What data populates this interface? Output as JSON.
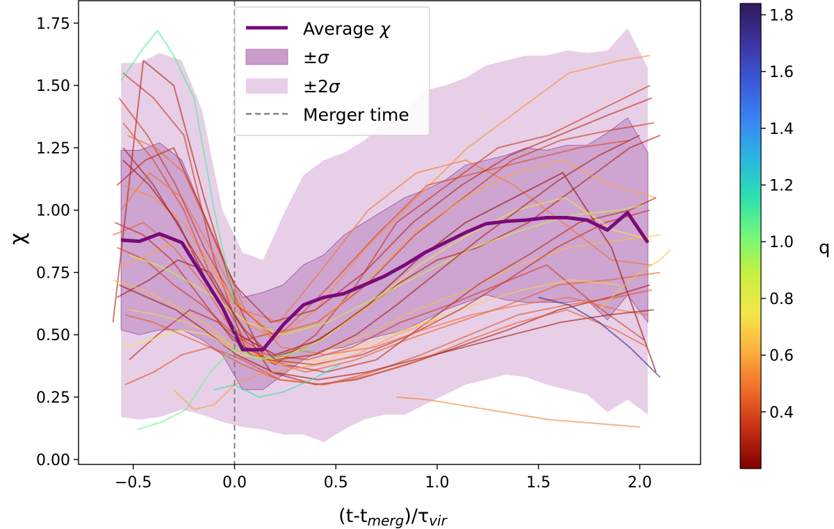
{
  "chart_data": {
    "type": "line",
    "xlabel": "(t-t_merg)/τ_vir",
    "ylabel": "χ",
    "xlim": [
      -0.77,
      2.3
    ],
    "ylim": [
      -0.02,
      1.84
    ],
    "x_ticks": [
      -0.5,
      0.0,
      0.5,
      1.0,
      1.5,
      2.0
    ],
    "y_ticks": [
      0.0,
      0.25,
      0.5,
      0.75,
      1.0,
      1.25,
      1.5,
      1.75
    ],
    "x_tick_labels": [
      "−0.5",
      "0.0",
      "0.5",
      "1.0",
      "1.5",
      "2.0"
    ],
    "y_tick_labels": [
      "0.00",
      "0.25",
      "0.50",
      "0.75",
      "1.00",
      "1.25",
      "1.50",
      "1.75"
    ],
    "grid": false,
    "legend_position": "top-center",
    "legend": [
      {
        "label": "Average χ",
        "kind": "line",
        "color": "#7a0a7a"
      },
      {
        "label": "±σ",
        "kind": "patch",
        "color": "#c99ccc"
      },
      {
        "label": "±2σ",
        "kind": "patch",
        "color": "#e8cfe8"
      },
      {
        "label": "Merger time",
        "kind": "dashed",
        "color": "#808080"
      }
    ],
    "merger_time_x": 0.0,
    "average": {
      "name": "Average χ",
      "color": "#7a0a7a",
      "x": [
        -0.56,
        -0.47,
        -0.37,
        -0.26,
        -0.16,
        -0.06,
        0.04,
        0.14,
        0.24,
        0.34,
        0.44,
        0.54,
        0.64,
        0.74,
        0.84,
        0.94,
        1.04,
        1.14,
        1.24,
        1.34,
        1.44,
        1.54,
        1.64,
        1.74,
        1.84,
        1.94,
        2.04
      ],
      "y": [
        0.88,
        0.875,
        0.905,
        0.87,
        0.74,
        0.61,
        0.44,
        0.44,
        0.54,
        0.62,
        0.65,
        0.665,
        0.7,
        0.735,
        0.78,
        0.83,
        0.87,
        0.91,
        0.945,
        0.955,
        0.96,
        0.97,
        0.97,
        0.96,
        0.92,
        0.99,
        0.87
      ]
    },
    "band_x": [
      -0.56,
      -0.47,
      -0.37,
      -0.26,
      -0.16,
      -0.06,
      0.04,
      0.14,
      0.24,
      0.34,
      0.44,
      0.54,
      0.64,
      0.74,
      0.84,
      0.94,
      1.04,
      1.14,
      1.24,
      1.34,
      1.44,
      1.54,
      1.64,
      1.74,
      1.84,
      1.94,
      2.04
    ],
    "sigma_band": {
      "label": "±σ",
      "color": "#c99ccc",
      "upper": [
        1.24,
        1.24,
        1.27,
        1.2,
        1.0,
        0.8,
        0.65,
        0.67,
        0.7,
        0.78,
        0.82,
        0.9,
        0.95,
        1.0,
        1.05,
        1.08,
        1.12,
        1.18,
        1.2,
        1.22,
        1.25,
        1.24,
        1.26,
        1.26,
        1.31,
        1.37,
        1.23
      ],
      "lower": [
        0.52,
        0.5,
        0.52,
        0.52,
        0.48,
        0.42,
        0.28,
        0.28,
        0.34,
        0.4,
        0.44,
        0.45,
        0.48,
        0.5,
        0.52,
        0.56,
        0.6,
        0.63,
        0.66,
        0.64,
        0.63,
        0.63,
        0.63,
        0.64,
        0.56,
        0.66,
        0.55
      ]
    },
    "two_sigma_band": {
      "label": "±2σ",
      "color": "#e8cfe8",
      "upper": [
        1.59,
        1.59,
        1.63,
        1.6,
        1.4,
        1.0,
        0.83,
        0.8,
        0.98,
        1.14,
        1.2,
        1.23,
        1.28,
        1.35,
        1.4,
        1.48,
        1.5,
        1.53,
        1.58,
        1.6,
        1.62,
        1.62,
        1.64,
        1.63,
        1.64,
        1.73,
        1.57
      ],
      "lower": [
        0.17,
        0.16,
        0.17,
        0.2,
        0.18,
        0.15,
        0.13,
        0.12,
        0.1,
        0.1,
        0.07,
        0.12,
        0.16,
        0.18,
        0.18,
        0.22,
        0.26,
        0.3,
        0.32,
        0.34,
        0.33,
        0.3,
        0.28,
        0.26,
        0.19,
        0.24,
        0.18
      ]
    },
    "colorbar": {
      "label": "q",
      "min": 0.2,
      "max": 1.84,
      "ticks": [
        0.4,
        0.6,
        0.8,
        1.0,
        1.2,
        1.4,
        1.6,
        1.8
      ],
      "tick_labels": [
        "0.4",
        "0.6",
        "0.8",
        "1.0",
        "1.2",
        "1.4",
        "1.6",
        "1.8"
      ],
      "colormap": [
        "#7f0000",
        "#c42d13",
        "#f06a2a",
        "#fcae3c",
        "#f4e64a",
        "#c9f03e",
        "#74f87a",
        "#2ce0b0",
        "#2ab7e0",
        "#3a84f5",
        "#3a58d8",
        "#3e33a0",
        "#2f1a5a"
      ]
    },
    "tracks": [
      {
        "q": 0.3,
        "x": [
          -0.6,
          -0.45,
          -0.3,
          -0.15,
          0.0,
          0.15,
          0.35,
          0.55,
          0.8,
          1.0,
          1.2,
          1.45,
          1.7,
          1.95,
          2.1
        ],
        "y": [
          0.55,
          1.6,
          1.5,
          1.05,
          0.65,
          0.4,
          0.45,
          0.55,
          0.7,
          0.8,
          0.85,
          0.95,
          1.1,
          1.25,
          1.3
        ]
      },
      {
        "q": 0.35,
        "x": [
          -0.55,
          -0.4,
          -0.25,
          -0.1,
          0.05,
          0.2,
          0.4,
          0.6,
          0.8,
          1.05,
          1.3,
          1.55,
          1.8,
          2.05
        ],
        "y": [
          1.55,
          1.45,
          1.3,
          0.8,
          0.45,
          0.38,
          0.5,
          0.7,
          0.95,
          1.1,
          1.25,
          1.3,
          1.4,
          1.5
        ]
      },
      {
        "q": 0.45,
        "x": [
          -0.6,
          -0.45,
          -0.3,
          -0.15,
          0.0,
          0.15,
          0.35,
          0.6,
          0.85,
          1.1,
          1.35,
          1.6,
          1.85,
          2.1
        ],
        "y": [
          0.9,
          0.95,
          0.85,
          0.7,
          0.5,
          0.4,
          0.35,
          0.4,
          0.48,
          0.55,
          0.62,
          0.7,
          0.72,
          0.75
        ]
      },
      {
        "q": 0.55,
        "x": [
          -0.55,
          -0.4,
          -0.25,
          -0.1,
          0.05,
          0.2,
          0.4,
          0.65,
          0.9,
          1.15,
          1.4,
          1.65,
          1.9,
          2.05
        ],
        "y": [
          1.1,
          1.05,
          0.95,
          0.75,
          0.55,
          0.48,
          0.6,
          0.85,
          1.05,
          1.25,
          1.4,
          1.55,
          1.6,
          1.62
        ]
      },
      {
        "q": 0.28,
        "x": [
          -0.58,
          -0.42,
          -0.28,
          -0.12,
          0.02,
          0.18,
          0.4,
          0.6,
          0.85,
          1.1,
          1.35,
          1.6,
          1.85,
          2.05
        ],
        "y": [
          0.65,
          0.72,
          0.8,
          0.75,
          0.55,
          0.35,
          0.3,
          0.32,
          0.38,
          0.45,
          0.52,
          0.6,
          0.65,
          0.7
        ]
      },
      {
        "q": 0.4,
        "x": [
          -0.55,
          -0.4,
          -0.25,
          -0.1,
          0.05,
          0.25,
          0.45,
          0.7,
          0.95,
          1.2,
          1.45,
          1.7,
          1.95
        ],
        "y": [
          1.35,
          1.2,
          1.0,
          0.7,
          0.48,
          0.52,
          0.68,
          0.9,
          1.1,
          1.15,
          1.2,
          1.25,
          1.28
        ]
      },
      {
        "q": 0.65,
        "x": [
          -0.6,
          -0.45,
          -0.3,
          -0.15,
          0.0,
          0.2,
          0.4,
          0.65,
          0.9,
          1.15,
          1.4,
          1.65,
          1.9,
          2.1
        ],
        "y": [
          0.72,
          0.68,
          0.62,
          0.55,
          0.45,
          0.4,
          0.42,
          0.5,
          0.6,
          0.68,
          0.78,
          0.85,
          0.88,
          0.9
        ]
      },
      {
        "q": 0.32,
        "x": [
          -0.52,
          -0.38,
          -0.22,
          -0.08,
          0.08,
          0.25,
          0.45,
          0.7,
          0.95,
          1.2,
          1.45,
          1.7,
          1.95,
          2.08
        ],
        "y": [
          0.4,
          0.5,
          0.6,
          0.55,
          0.42,
          0.38,
          0.35,
          0.4,
          0.55,
          0.7,
          0.82,
          0.95,
          1.0,
          1.05
        ]
      },
      {
        "q": 0.5,
        "x": [
          -0.56,
          -0.42,
          -0.26,
          -0.12,
          0.04,
          0.22,
          0.42,
          0.66,
          0.9,
          1.14,
          1.38,
          1.62,
          1.86,
          2.06
        ],
        "y": [
          1.0,
          1.15,
          1.05,
          0.85,
          0.6,
          0.55,
          0.75,
          1.0,
          1.15,
          1.2,
          1.1,
          0.95,
          0.8,
          0.78
        ]
      },
      {
        "q": 0.38,
        "x": [
          -0.58,
          -0.44,
          -0.3,
          -0.16,
          0.0,
          0.16,
          0.36,
          0.58,
          0.82,
          1.06,
          1.3,
          1.54,
          1.78,
          2.02
        ],
        "y": [
          0.85,
          0.8,
          0.7,
          0.62,
          0.5,
          0.42,
          0.4,
          0.45,
          0.55,
          0.62,
          0.7,
          0.78,
          0.62,
          0.48
        ]
      },
      {
        "q": 0.25,
        "x": [
          -0.55,
          -0.42,
          -0.28,
          -0.14,
          0.02,
          0.2,
          0.42,
          0.66,
          0.9,
          1.14,
          1.38,
          1.62,
          1.86,
          2.08
        ],
        "y": [
          1.2,
          1.1,
          0.95,
          0.72,
          0.5,
          0.42,
          0.48,
          0.62,
          0.8,
          0.95,
          1.05,
          1.15,
          0.85,
          0.35
        ]
      },
      {
        "q": 0.7,
        "x": [
          -0.52,
          -0.38,
          -0.24,
          -0.1,
          0.06,
          0.24,
          0.46,
          0.7,
          0.94,
          1.18,
          1.42,
          1.66,
          1.9
        ],
        "y": [
          0.6,
          0.58,
          0.55,
          0.5,
          0.42,
          0.38,
          0.4,
          0.48,
          0.55,
          0.62,
          0.68,
          0.72,
          0.7
        ]
      },
      {
        "q": 0.36,
        "x": [
          -0.57,
          -0.43,
          -0.29,
          -0.15,
          0.01,
          0.19,
          0.41,
          0.65,
          0.89,
          1.13,
          1.37,
          1.61,
          1.85,
          2.07
        ],
        "y": [
          1.45,
          1.3,
          1.1,
          0.85,
          0.62,
          0.5,
          0.55,
          0.7,
          0.9,
          1.05,
          1.2,
          1.28,
          1.32,
          1.35
        ]
      },
      {
        "q": 0.42,
        "x": [
          -0.54,
          -0.4,
          -0.26,
          -0.12,
          0.04,
          0.22,
          0.44,
          0.68,
          0.92,
          1.16,
          1.4,
          1.64,
          1.88,
          2.06
        ],
        "y": [
          0.3,
          0.35,
          0.42,
          0.45,
          0.4,
          0.32,
          0.3,
          0.35,
          0.42,
          0.5,
          0.58,
          0.62,
          0.65,
          0.68
        ]
      },
      {
        "q": 0.6,
        "x": [
          -0.56,
          -0.42,
          -0.28,
          -0.14,
          0.02,
          0.2,
          0.42,
          0.66,
          0.9,
          1.14,
          1.38,
          1.62,
          1.86,
          2.08
        ],
        "y": [
          0.78,
          0.82,
          0.88,
          0.8,
          0.62,
          0.5,
          0.55,
          0.72,
          0.92,
          1.05,
          1.15,
          1.2,
          1.1,
          1.05
        ]
      },
      {
        "q": 0.33,
        "x": [
          -0.59,
          -0.45,
          -0.31,
          -0.17,
          -0.01,
          0.17,
          0.39,
          0.63,
          0.87,
          1.11,
          1.35,
          1.59,
          1.83,
          2.05
        ],
        "y": [
          0.95,
          0.9,
          0.8,
          0.65,
          0.48,
          0.4,
          0.38,
          0.42,
          0.5,
          0.6,
          0.72,
          0.85,
          0.95,
          1.0
        ]
      },
      {
        "q": 0.48,
        "x": [
          -0.53,
          -0.39,
          -0.25,
          -0.11,
          0.05,
          0.23,
          0.45,
          0.69,
          0.93,
          1.17,
          1.41,
          1.65,
          1.89,
          2.04
        ],
        "y": [
          1.3,
          1.25,
          1.15,
          0.9,
          0.6,
          0.45,
          0.42,
          0.45,
          0.52,
          0.58,
          0.62,
          0.65,
          0.6,
          0.58
        ]
      },
      {
        "q": 0.27,
        "x": [
          -0.57,
          -0.43,
          -0.29,
          -0.15,
          0.01,
          0.19,
          0.41,
          0.65,
          0.89,
          1.13,
          1.37,
          1.61,
          1.85,
          2.07
        ],
        "y": [
          0.7,
          0.65,
          0.6,
          0.52,
          0.42,
          0.35,
          0.32,
          0.35,
          0.4,
          0.45,
          0.5,
          0.55,
          0.58,
          0.6
        ]
      },
      {
        "q": 0.75,
        "x": [
          -0.55,
          -0.41,
          -0.27,
          -0.13,
          0.03,
          0.21,
          0.43,
          0.67,
          0.91,
          1.15,
          1.39,
          1.63,
          1.87,
          2.06
        ],
        "y": [
          0.45,
          0.48,
          0.52,
          0.5,
          0.42,
          0.4,
          0.48,
          0.62,
          0.78,
          0.9,
          1.0,
          1.05,
          0.92,
          0.88
        ]
      },
      {
        "q": 0.31,
        "x": [
          -0.58,
          -0.44,
          -0.3,
          -0.16,
          0.0,
          0.18,
          0.4,
          0.64,
          0.88,
          1.12,
          1.36,
          1.6,
          1.84,
          2.06
        ],
        "y": [
          1.1,
          1.2,
          1.25,
          1.0,
          0.7,
          0.55,
          0.6,
          0.75,
          0.95,
          1.1,
          1.22,
          1.3,
          1.38,
          1.45
        ]
      },
      {
        "q": 0.44,
        "x": [
          -0.54,
          -0.4,
          -0.26,
          -0.12,
          0.04,
          0.22,
          0.44,
          0.68,
          0.92,
          1.16,
          1.4,
          1.64,
          1.88,
          2.04
        ],
        "y": [
          0.58,
          0.55,
          0.5,
          0.45,
          0.38,
          0.32,
          0.3,
          0.34,
          0.4,
          0.48,
          0.55,
          0.6,
          0.52,
          0.45
        ]
      },
      {
        "q": 0.85,
        "x": [
          -0.52,
          -0.38,
          -0.24,
          -0.1,
          0.06,
          0.24,
          0.46,
          0.7,
          0.94,
          1.18,
          1.42,
          1.66,
          1.9,
          2.02
        ],
        "y": [
          0.82,
          0.78,
          0.72,
          0.65,
          0.55,
          0.5,
          0.55,
          0.65,
          0.75,
          0.85,
          0.92,
          0.98,
          1.0,
          1.02
        ]
      },
      {
        "q": 1.05,
        "x": [
          -0.48,
          -0.36,
          -0.24,
          -0.12,
          0.0,
          0.12,
          0.26,
          0.4
        ],
        "y": [
          0.12,
          0.15,
          0.2,
          0.35,
          0.45,
          0.4,
          0.42,
          0.45
        ]
      },
      {
        "q": 1.1,
        "x": [
          -0.56,
          -0.45,
          -0.38,
          -0.3,
          -0.2,
          -0.1,
          0.0
        ],
        "y": [
          1.52,
          1.65,
          1.72,
          1.62,
          1.45,
          1.0,
          0.62
        ]
      },
      {
        "q": 1.15,
        "x": [
          -0.1,
          0.0,
          0.12,
          0.24,
          0.38,
          0.52
        ],
        "y": [
          0.28,
          0.3,
          0.25,
          0.27,
          0.32,
          0.38
        ]
      },
      {
        "q": 0.58,
        "x": [
          -0.3,
          -0.2,
          -0.1,
          0.0,
          0.12,
          0.26,
          0.42,
          0.6,
          0.8,
          1.0
        ],
        "y": [
          0.28,
          0.2,
          0.22,
          0.3,
          0.34,
          0.36,
          0.38,
          0.42,
          0.5,
          0.56
        ]
      },
      {
        "q": 0.52,
        "x": [
          0.8,
          0.95,
          1.1,
          1.25,
          1.4,
          1.55,
          1.7,
          1.85,
          2.0
        ],
        "y": [
          0.25,
          0.24,
          0.22,
          0.2,
          0.18,
          0.16,
          0.15,
          0.14,
          0.13
        ]
      },
      {
        "q": 0.66,
        "x": [
          1.8,
          1.9,
          2.0,
          2.1,
          2.15
        ],
        "y": [
          0.6,
          0.68,
          0.75,
          0.8,
          0.84
        ]
      },
      {
        "q": 1.75,
        "x": [
          1.5,
          1.65,
          1.8,
          1.95,
          2.1
        ],
        "y": [
          0.65,
          0.62,
          0.55,
          0.45,
          0.33
        ]
      },
      {
        "q": 0.29,
        "x": [
          -0.55,
          -0.4,
          -0.25,
          -0.1,
          0.05,
          0.2,
          0.4,
          0.6,
          0.8,
          1.0,
          1.2,
          1.4,
          1.6,
          1.8,
          2.0
        ],
        "y": [
          1.25,
          1.1,
          0.9,
          0.7,
          0.52,
          0.4,
          0.42,
          0.5,
          0.62,
          0.75,
          0.88,
          1.0,
          1.12,
          1.22,
          1.3
        ]
      }
    ]
  }
}
